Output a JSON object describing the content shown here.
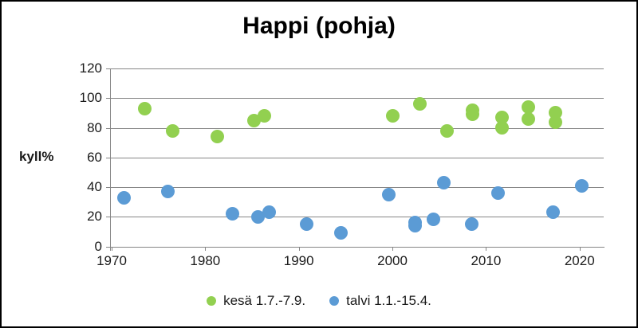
{
  "title": "Happi (pohja)",
  "y_axis_label": "kyll%",
  "legend": {
    "items": [
      {
        "label": "kesä 1.7.-7.9.",
        "color": "#92D050"
      },
      {
        "label": "talvi 1.1.-15.4.",
        "color": "#5B9BD5"
      }
    ]
  },
  "colors": {
    "summer_green": "#92D050",
    "winter_blue": "#5B9BD5",
    "gridline_gray": "#868686",
    "text": "#1a1a1a"
  },
  "chart_data": {
    "type": "scatter",
    "title": "Happi (pohja)",
    "xlabel": "",
    "ylabel": "kyll%",
    "ylim": [
      0,
      120
    ],
    "xlim": [
      1969.8,
      2022.6
    ],
    "x_ticks": [
      1970,
      1980,
      1990,
      2000,
      2010,
      2020
    ],
    "y_ticks": [
      0,
      20,
      40,
      60,
      80,
      100,
      120
    ],
    "grid": true,
    "legend_position": "bottom",
    "series": [
      {
        "name": "kesä 1.7.-7.9.",
        "color": "#92D050",
        "points": [
          [
            1973.5,
            93
          ],
          [
            1976.5,
            78
          ],
          [
            1981.3,
            74
          ],
          [
            1985.2,
            85
          ],
          [
            1986.3,
            88
          ],
          [
            2000.0,
            88
          ],
          [
            2002.9,
            96
          ],
          [
            2005.8,
            78
          ],
          [
            2008.6,
            92
          ],
          [
            2008.6,
            89
          ],
          [
            2011.7,
            87
          ],
          [
            2011.7,
            80
          ],
          [
            2014.5,
            94
          ],
          [
            2014.5,
            86
          ],
          [
            2017.4,
            90
          ],
          [
            2017.4,
            84
          ]
        ]
      },
      {
        "name": "talvi 1.1.-15.4.",
        "color": "#5B9BD5",
        "points": [
          [
            1971.3,
            33
          ],
          [
            1976.0,
            37
          ],
          [
            1982.9,
            22
          ],
          [
            1985.6,
            20
          ],
          [
            1986.8,
            23
          ],
          [
            1990.8,
            15
          ],
          [
            1994.5,
            9
          ],
          [
            1999.6,
            35
          ],
          [
            2002.4,
            16
          ],
          [
            2002.4,
            14
          ],
          [
            2004.4,
            18
          ],
          [
            2005.5,
            43
          ],
          [
            2008.5,
            15
          ],
          [
            2011.3,
            36
          ],
          [
            2017.2,
            23
          ],
          [
            2020.2,
            41
          ]
        ]
      }
    ]
  }
}
